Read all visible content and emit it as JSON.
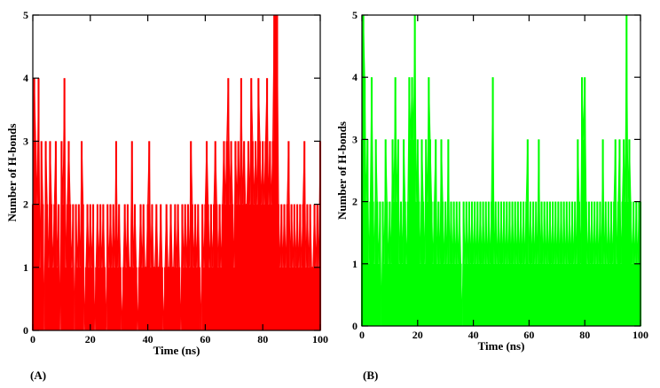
{
  "figure": {
    "panel_labels": [
      "(A)",
      "(B)"
    ]
  },
  "chart_data": [
    {
      "type": "line",
      "panel": "(A)",
      "xlabel": "Time (ns)",
      "ylabel": "Number of H-bonds",
      "xlim": [
        0,
        100
      ],
      "ylim": [
        0,
        5
      ],
      "xticks": [
        0,
        20,
        40,
        60,
        80,
        100
      ],
      "yticks": [
        0,
        1,
        2,
        3,
        4,
        5
      ],
      "grid": false,
      "color": "#ff0000",
      "series": [
        {
          "x": [
            0,
            0.5,
            1,
            1.5,
            2,
            2.5,
            3,
            3.5,
            4,
            4.5,
            5,
            5.5,
            6,
            6.5,
            7,
            7.5,
            8,
            8.5,
            9,
            9.5,
            10,
            10.5,
            11,
            11.5,
            12,
            12.5,
            13,
            13.5,
            14,
            14.5,
            15,
            15.5,
            16,
            16.5,
            17,
            17.5,
            18,
            18.5,
            19,
            19.5,
            20,
            20.5,
            21,
            21.5,
            22,
            22.5,
            23,
            23.5,
            24,
            24.5,
            25,
            25.5,
            26,
            26.5,
            27,
            27.5,
            28,
            28.5,
            29,
            29.5,
            30,
            30.5,
            31,
            31.5,
            32,
            32.5,
            33,
            33.5,
            34,
            34.5,
            35,
            35.5,
            36,
            36.5,
            37,
            37.5,
            38,
            38.5,
            39,
            39.5,
            40,
            40.5,
            41,
            41.5,
            42,
            42.5,
            43,
            43.5,
            44,
            44.5,
            45,
            45.5,
            46,
            46.5,
            47,
            47.5,
            48,
            48.5,
            49,
            49.5,
            50,
            50.5,
            51,
            51.5,
            52,
            52.5,
            53,
            53.5,
            54,
            54.5,
            55,
            55.5,
            56,
            56.5,
            57,
            57.5,
            58,
            58.5,
            59,
            59.5,
            60,
            60.5,
            61,
            61.5,
            62,
            62.5,
            63,
            63.5,
            64,
            64.5,
            65,
            65.5,
            66,
            66.5,
            67,
            67.5,
            68,
            68.5,
            69,
            69.5,
            70,
            70.5,
            71,
            71.5,
            72,
            72.5,
            73,
            73.5,
            74,
            74.5,
            75,
            75.5,
            76,
            76.5,
            77,
            77.5,
            78,
            78.5,
            79,
            79.5,
            80,
            80.5,
            81,
            81.5,
            82,
            82.5,
            83,
            83.5,
            84,
            84.5,
            85,
            85.5,
            86,
            86.5,
            87,
            87.5,
            88,
            88.5,
            89,
            89.5,
            90,
            90.5,
            91,
            91.5,
            92,
            92.5,
            93,
            93.5,
            94,
            94.5,
            95,
            95.5,
            96,
            96.5,
            97,
            97.5,
            98,
            98.5,
            99,
            99.5,
            100
          ],
          "y": [
            2,
            4,
            3,
            2,
            4,
            1,
            3,
            2,
            0,
            3,
            2,
            1,
            3,
            2,
            1,
            2,
            3,
            1,
            2,
            0,
            3,
            2,
            4,
            1,
            2,
            3,
            2,
            1,
            2,
            0,
            2,
            1,
            2,
            1,
            3,
            2,
            0,
            1,
            2,
            1,
            2,
            1,
            2,
            0,
            1,
            2,
            1,
            2,
            1,
            2,
            1,
            0,
            2,
            1,
            2,
            1,
            2,
            1,
            3,
            1,
            2,
            1,
            0,
            1,
            2,
            1,
            2,
            1,
            1,
            3,
            1,
            2,
            1,
            0,
            1,
            2,
            1,
            2,
            1,
            1,
            2,
            3,
            1,
            2,
            1,
            1,
            2,
            1,
            1,
            2,
            1,
            0,
            1,
            2,
            1,
            1,
            2,
            1,
            1,
            2,
            1,
            2,
            1,
            0,
            2,
            1,
            2,
            1,
            2,
            1,
            3,
            2,
            1,
            2,
            1,
            2,
            1,
            0,
            2,
            1,
            2,
            3,
            2,
            1,
            2,
            1,
            2,
            3,
            2,
            1,
            2,
            1,
            2,
            3,
            2,
            3,
            4,
            2,
            3,
            2,
            1,
            3,
            2,
            3,
            2,
            4,
            2,
            3,
            2,
            2,
            3,
            2,
            4,
            3,
            2,
            3,
            2,
            4,
            3,
            2,
            3,
            2,
            3,
            4,
            2,
            3,
            2,
            3,
            5,
            5,
            5,
            2,
            1,
            2,
            1,
            2,
            1,
            2,
            3,
            1,
            2,
            1,
            2,
            1,
            2,
            1,
            2,
            1,
            2,
            3,
            1,
            2,
            1,
            2,
            1,
            1,
            2,
            1,
            2,
            1,
            3
          ]
        }
      ]
    },
    {
      "type": "line",
      "panel": "(B)",
      "xlabel": "Time (ns)",
      "ylabel": "Number of H-bonds",
      "xlim": [
        0,
        100
      ],
      "ylim": [
        0,
        5
      ],
      "xticks": [
        0,
        20,
        40,
        60,
        80,
        100
      ],
      "yticks": [
        0,
        1,
        2,
        3,
        4,
        5
      ],
      "grid": false,
      "color": "#00ff00",
      "series": [
        {
          "x": [
            0,
            0.5,
            1,
            1.5,
            2,
            2.5,
            3,
            3.5,
            4,
            4.5,
            5,
            5.5,
            6,
            6.5,
            7,
            7.5,
            8,
            8.5,
            9,
            9.5,
            10,
            10.5,
            11,
            11.5,
            12,
            12.5,
            13,
            13.5,
            14,
            14.5,
            15,
            15.5,
            16,
            16.5,
            17,
            17.5,
            18,
            18.5,
            19,
            19.5,
            20,
            20.5,
            21,
            21.5,
            22,
            22.5,
            23,
            23.5,
            24,
            24.5,
            25,
            25.5,
            26,
            26.5,
            27,
            27.5,
            28,
            28.5,
            29,
            29.5,
            30,
            30.5,
            31,
            31.5,
            32,
            32.5,
            33,
            33.5,
            34,
            34.5,
            35,
            35.5,
            36,
            36.5,
            37,
            37.5,
            38,
            38.5,
            39,
            39.5,
            40,
            40.5,
            41,
            41.5,
            42,
            42.5,
            43,
            43.5,
            44,
            44.5,
            45,
            45.5,
            46,
            46.5,
            47,
            47.5,
            48,
            48.5,
            49,
            49.5,
            50,
            50.5,
            51,
            51.5,
            52,
            52.5,
            53,
            53.5,
            54,
            54.5,
            55,
            55.5,
            56,
            56.5,
            57,
            57.5,
            58,
            58.5,
            59,
            59.5,
            60,
            60.5,
            61,
            61.5,
            62,
            62.5,
            63,
            63.5,
            64,
            64.5,
            65,
            65.5,
            66,
            66.5,
            67,
            67.5,
            68,
            68.5,
            69,
            69.5,
            70,
            70.5,
            71,
            71.5,
            72,
            72.5,
            73,
            73.5,
            74,
            74.5,
            75,
            75.5,
            76,
            76.5,
            77,
            77.5,
            78,
            78.5,
            79,
            79.5,
            80,
            80.5,
            81,
            81.5,
            82,
            82.5,
            83,
            83.5,
            84,
            84.5,
            85,
            85.5,
            86,
            86.5,
            87,
            87.5,
            88,
            88.5,
            89,
            89.5,
            90,
            90.5,
            91,
            91.5,
            92,
            92.5,
            93,
            93.5,
            94,
            94.5,
            95,
            95.5,
            96,
            96.5,
            97,
            97.5,
            98,
            98.5,
            99,
            99.5,
            100
          ],
          "y": [
            3,
            5,
            4,
            2,
            3,
            1,
            2,
            4,
            2,
            1,
            3,
            2,
            1,
            2,
            0,
            2,
            1,
            3,
            2,
            1,
            2,
            1,
            3,
            2,
            4,
            2,
            3,
            1,
            2,
            1,
            3,
            2,
            1,
            2,
            4,
            3,
            4,
            3,
            5,
            2,
            3,
            2,
            1,
            3,
            2,
            1,
            3,
            2,
            4,
            3,
            2,
            1,
            2,
            3,
            1,
            2,
            1,
            3,
            2,
            1,
            2,
            1,
            3,
            1,
            2,
            1,
            2,
            1,
            2,
            1,
            2,
            1,
            0,
            2,
            1,
            2,
            1,
            2,
            1,
            2,
            1,
            2,
            1,
            2,
            1,
            2,
            1,
            2,
            1,
            2,
            1,
            2,
            1,
            2,
            4,
            1,
            2,
            1,
            2,
            1,
            2,
            1,
            2,
            1,
            2,
            1,
            2,
            1,
            2,
            1,
            2,
            1,
            2,
            1,
            2,
            1,
            2,
            1,
            2,
            3,
            1,
            2,
            1,
            2,
            1,
            2,
            1,
            3,
            1,
            2,
            1,
            2,
            1,
            2,
            1,
            2,
            1,
            2,
            1,
            2,
            1,
            2,
            1,
            2,
            1,
            2,
            1,
            2,
            1,
            2,
            1,
            2,
            1,
            2,
            1,
            3,
            2,
            1,
            4,
            3,
            4,
            2,
            1,
            2,
            1,
            2,
            1,
            2,
            1,
            2,
            1,
            2,
            1,
            3,
            1,
            2,
            1,
            2,
            1,
            2,
            1,
            2,
            3,
            1,
            2,
            3,
            1,
            2,
            3,
            2,
            5,
            2,
            3,
            2,
            1,
            2,
            1,
            2,
            1,
            2,
            2
          ]
        }
      ]
    }
  ]
}
